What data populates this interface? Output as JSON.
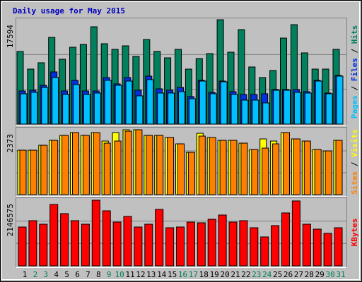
{
  "chart_data": [
    {
      "type": "bar",
      "title": "Daily usage for May 2015",
      "legend_separator": " / ",
      "ylim": [
        0,
        17594
      ],
      "yticks": [
        17594
      ],
      "series": [
        {
          "name": "Hits",
          "color": "#00805c",
          "values": [
            12245,
            9273,
            10343,
            14622,
            10937,
            12958,
            13433,
            16405,
            13552,
            12601,
            13195,
            11412,
            14265,
            12245,
            11174,
            12601,
            9273,
            11056,
            11888,
            17594,
            12126,
            15930,
            9629,
            7846,
            9035,
            14503,
            16762,
            12007,
            9273,
            9273,
            12601
          ]
        },
        {
          "name": "Files",
          "color": "#0030e0",
          "values": [
            5588,
            5707,
            6540,
            8799,
            5588,
            7372,
            5588,
            5588,
            7847,
            6777,
            7847,
            5707,
            8085,
            5945,
            5707,
            6183,
            4637,
            7372,
            5350,
            7253,
            5469,
            4994,
            4994,
            5113,
            5826,
            5826,
            5826,
            5469,
            7372,
            5232,
            8204
          ]
        },
        {
          "name": "Pages",
          "color": "#00c0ff",
          "values": [
            5113,
            5350,
            6183,
            7847,
            4994,
            6658,
            4994,
            5232,
            7372,
            6540,
            7253,
            4756,
            7491,
            5232,
            5232,
            5469,
            4280,
            7253,
            5113,
            7134,
            4994,
            4043,
            4043,
            3567,
            5707,
            5707,
            5350,
            5232,
            7253,
            5113,
            8085
          ]
        }
      ]
    },
    {
      "type": "bar",
      "legend_separator": " / ",
      "ylim": [
        0,
        2373
      ],
      "yticks": [
        2373
      ],
      "series": [
        {
          "name": "Visits",
          "color": "#ffff00",
          "values": [
            1607,
            1607,
            1785,
            1964,
            2142,
            2244,
            2142,
            2244,
            1938,
            2244,
            2346,
            2346,
            2142,
            2142,
            2066,
            1836,
            1530,
            2219,
            2066,
            1964,
            1964,
            1862,
            1632,
            2015,
            1938,
            2244,
            2015,
            1938,
            1632,
            1581,
            1964
          ]
        },
        {
          "name": "Sites",
          "color": "#ff8000",
          "values": [
            1607,
            1607,
            1785,
            1964,
            2142,
            2244,
            2142,
            2244,
            1862,
            1938,
            2295,
            2346,
            2142,
            2142,
            2066,
            1836,
            1530,
            2117,
            2066,
            1964,
            1964,
            1862,
            1632,
            1683,
            1836,
            2244,
            2015,
            1938,
            1632,
            1581,
            1964
          ]
        }
      ]
    },
    {
      "type": "bar",
      "ylim": [
        0,
        2146575
      ],
      "yticks": [
        2146575
      ],
      "series": [
        {
          "name": "KBytes",
          "color": "#ff0000",
          "values": [
            1242780,
            1446144,
            1333164,
            1965852,
            1672104,
            1446144,
            1333164,
            2101428,
            1762488,
            1400952,
            1581720,
            1242780,
            1333164,
            1807680,
            1220184,
            1242780,
            1400952,
            1378356,
            1491336,
            1626912,
            1400952,
            1446144,
            1220184,
            926436,
            1287972,
            1694700,
            2078832,
            1333164,
            1174992,
            1039416,
            1220184
          ]
        }
      ],
      "categories": [
        "1",
        "2",
        "3",
        "4",
        "5",
        "6",
        "7",
        "8",
        "9",
        "10",
        "11",
        "12",
        "13",
        "14",
        "15",
        "16",
        "17",
        "18",
        "19",
        "20",
        "21",
        "22",
        "23",
        "24",
        "25",
        "26",
        "27",
        "28",
        "29",
        "30",
        "31"
      ],
      "category_colors": [
        "#000000",
        "#00805c",
        "#00805c",
        "#000000",
        "#000000",
        "#000000",
        "#000000",
        "#000000",
        "#00805c",
        "#00805c",
        "#000000",
        "#000000",
        "#000000",
        "#000000",
        "#000000",
        "#00805c",
        "#00805c",
        "#000000",
        "#000000",
        "#000000",
        "#000000",
        "#000000",
        "#00805c",
        "#00805c",
        "#000000",
        "#000000",
        "#000000",
        "#000000",
        "#000000",
        "#00805c",
        "#00805c"
      ]
    }
  ]
}
